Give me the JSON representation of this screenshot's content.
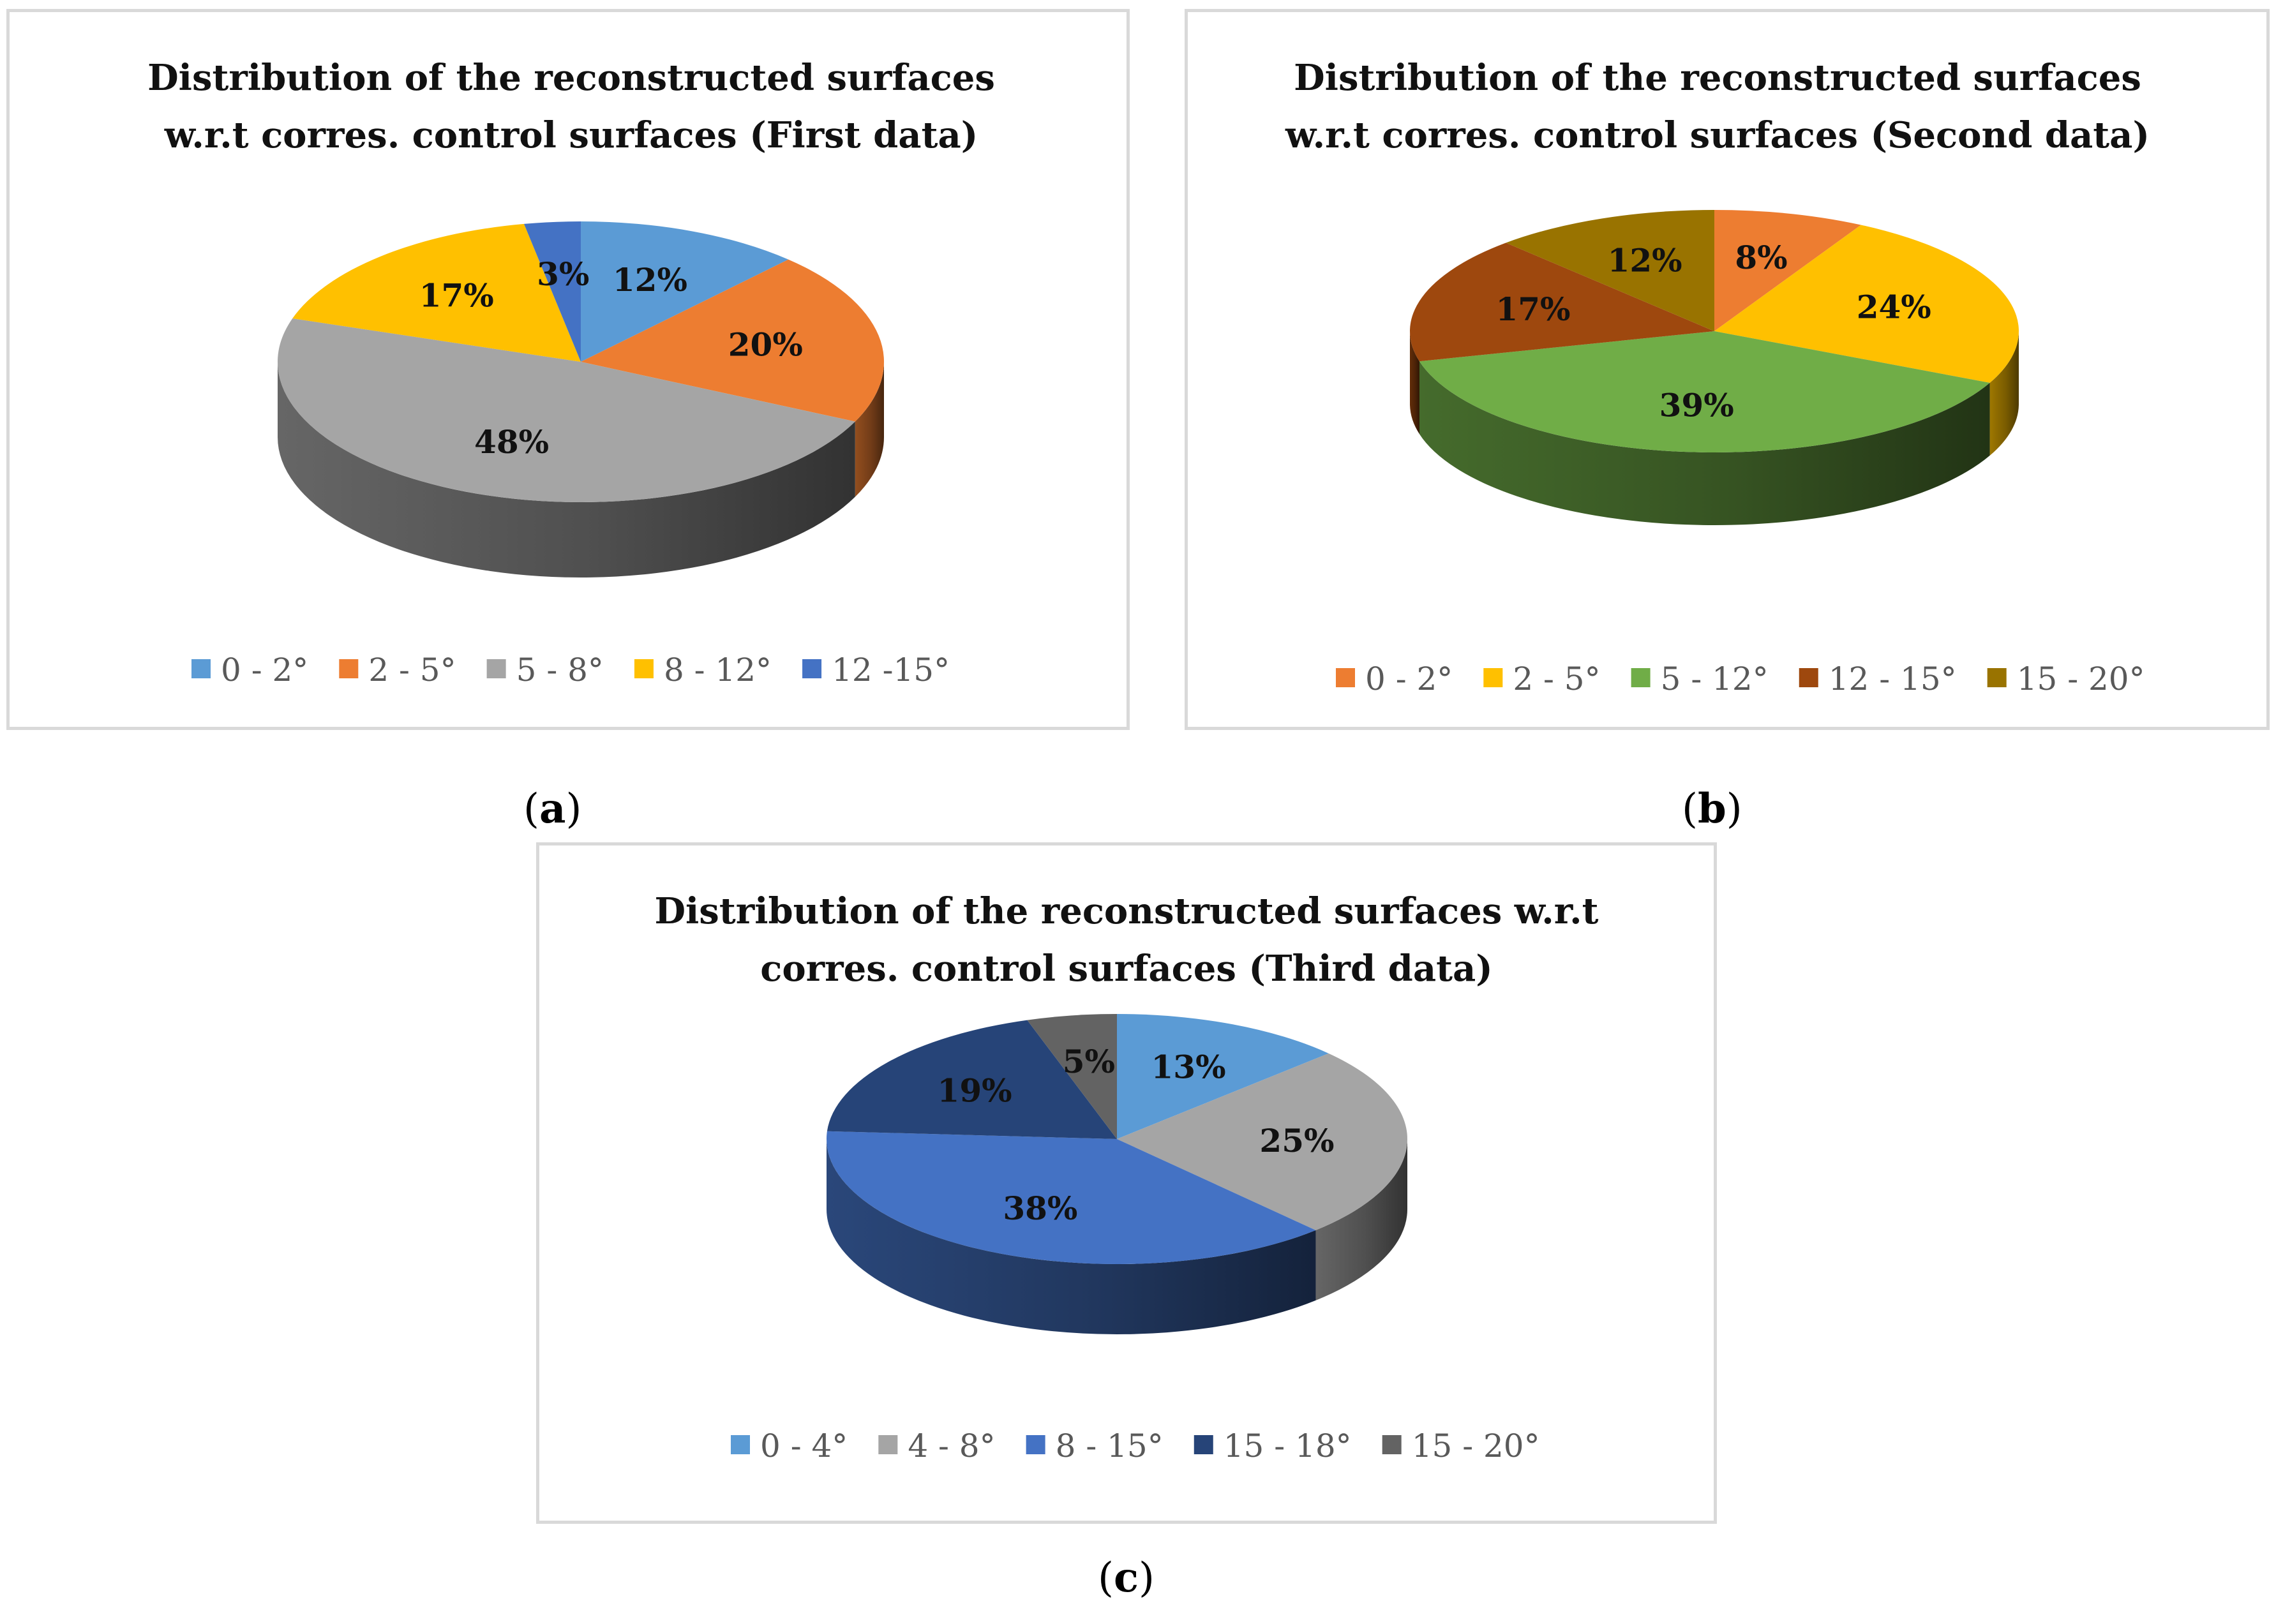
{
  "chart_data": [
    {
      "type": "pie",
      "title_lines": [
        "Distribution of the reconstructed surfaces",
        "w.r.t corres. control surfaces (First data)"
      ],
      "categories": [
        "0 - 2°",
        "2 - 5°",
        "5 - 8°",
        "8 - 12°",
        "12 -15°"
      ],
      "values": [
        12,
        20,
        48,
        17,
        3
      ],
      "labels": [
        "12%",
        "20%",
        "48%",
        "17%",
        "3%"
      ],
      "colors": [
        "#5b9bd5",
        "#ed7d31",
        "#a5a5a5",
        "#ffc000",
        "#4472c4"
      ],
      "legend_position": "bottom",
      "panel_label": "a"
    },
    {
      "type": "pie",
      "title_lines": [
        "Distribution of the reconstructed surfaces",
        "w.r.t corres. control surfaces (Second data)"
      ],
      "categories": [
        "0 - 2°",
        "2 - 5°",
        "5 - 12°",
        "12 - 15°",
        "15 - 20°"
      ],
      "values": [
        8,
        24,
        39,
        17,
        12
      ],
      "labels": [
        "8%",
        "24%",
        "39%",
        "17%",
        "12%"
      ],
      "colors": [
        "#ed7d31",
        "#ffc000",
        "#70ad47",
        "#9e480e",
        "#997300"
      ],
      "legend_position": "bottom",
      "panel_label": "b"
    },
    {
      "type": "pie",
      "title_lines": [
        "Distribution of the reconstructed surfaces w.r.t",
        "corres. control surfaces (Third data)"
      ],
      "categories": [
        "0 - 4°",
        "4 - 8°",
        "8 - 15°",
        "15 - 18°",
        "15 - 20°"
      ],
      "values": [
        13,
        25,
        38,
        19,
        5
      ],
      "labels": [
        "13%",
        "25%",
        "38%",
        "19%",
        "5%"
      ],
      "colors": [
        "#5b9bd5",
        "#a5a5a5",
        "#4472c4",
        "#264478",
        "#636363"
      ],
      "legend_position": "bottom",
      "panel_label": "c"
    }
  ]
}
